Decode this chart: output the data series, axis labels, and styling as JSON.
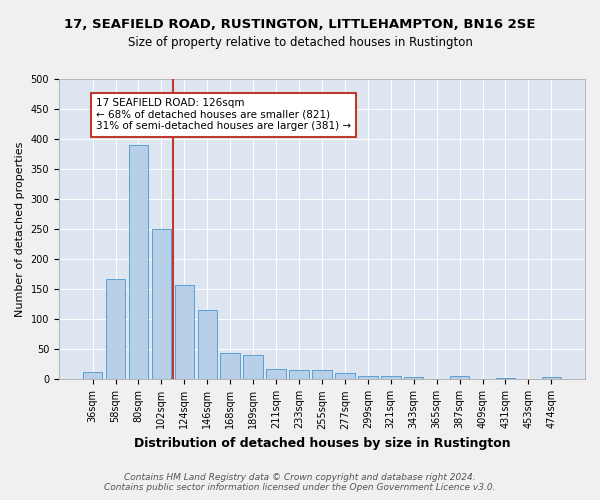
{
  "title": "17, SEAFIELD ROAD, RUSTINGTON, LITTLEHAMPTON, BN16 2SE",
  "subtitle": "Size of property relative to detached houses in Rustington",
  "xlabel": "Distribution of detached houses by size in Rustington",
  "ylabel": "Number of detached properties",
  "categories": [
    "36sqm",
    "58sqm",
    "80sqm",
    "102sqm",
    "124sqm",
    "146sqm",
    "168sqm",
    "189sqm",
    "211sqm",
    "233sqm",
    "255sqm",
    "277sqm",
    "299sqm",
    "321sqm",
    "343sqm",
    "365sqm",
    "387sqm",
    "409sqm",
    "431sqm",
    "453sqm",
    "474sqm"
  ],
  "values": [
    13,
    167,
    390,
    250,
    157,
    115,
    44,
    41,
    18,
    16,
    15,
    10,
    6,
    5,
    4,
    0,
    6,
    0,
    3,
    0,
    4
  ],
  "bar_color": "#b8cfe8",
  "bar_edge_color": "#5a9fd4",
  "subject_line_color": "#c0392b",
  "annotation_text": "17 SEAFIELD ROAD: 126sqm\n← 68% of detached houses are smaller (821)\n31% of semi-detached houses are larger (381) →",
  "annotation_box_color": "#ffffff",
  "annotation_box_edge_color": "#c0392b",
  "ylim": [
    0,
    500
  ],
  "yticks": [
    0,
    50,
    100,
    150,
    200,
    250,
    300,
    350,
    400,
    450,
    500
  ],
  "background_color": "#dde6f0",
  "fig_background_color": "#f0f0f0",
  "footer_line1": "Contains HM Land Registry data © Crown copyright and database right 2024.",
  "footer_line2": "Contains public sector information licensed under the Open Government Licence v3.0.",
  "title_fontsize": 9.5,
  "subtitle_fontsize": 8.5,
  "xlabel_fontsize": 9,
  "ylabel_fontsize": 8,
  "tick_fontsize": 7,
  "annotation_fontsize": 7.5,
  "footer_fontsize": 6.5
}
